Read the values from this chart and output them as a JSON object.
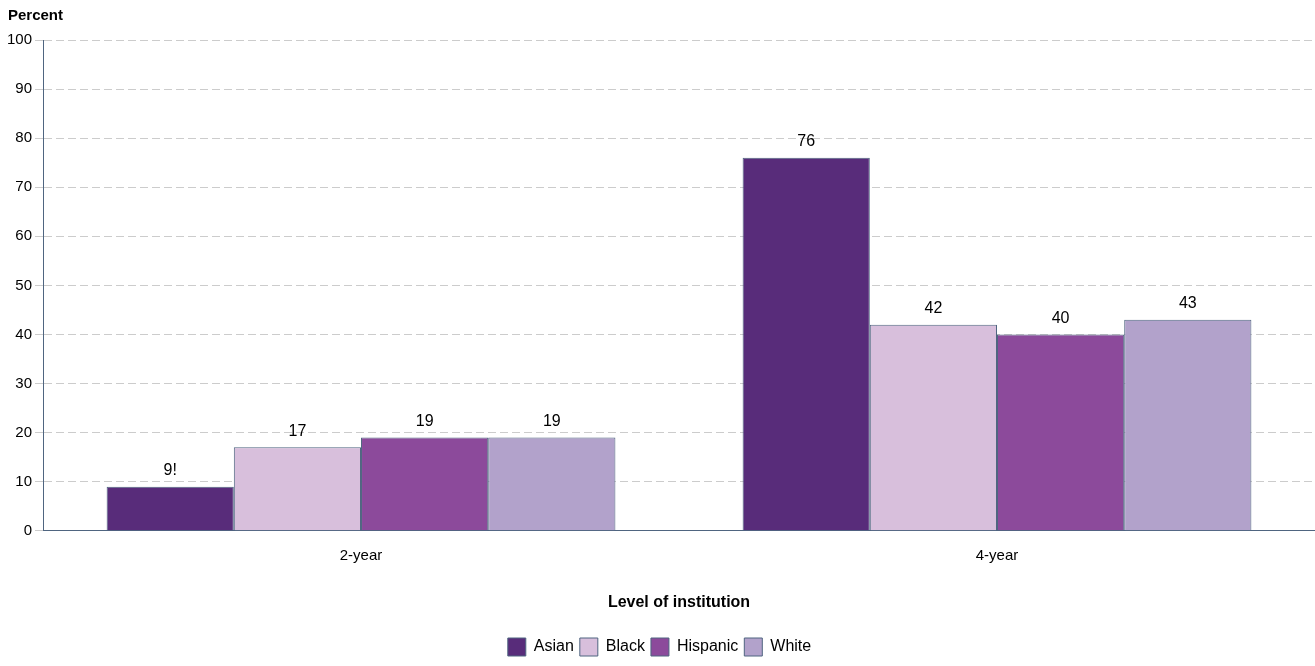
{
  "chart_data": {
    "type": "bar",
    "xlabel": "Level of institution",
    "ylabel": "Percent",
    "categories": [
      "2-year",
      "4-year"
    ],
    "series": [
      {
        "name": "Asian",
        "color": "#582c7a",
        "values": [
          9,
          76
        ],
        "value_labels": [
          "9!",
          "76"
        ]
      },
      {
        "name": "Black",
        "color": "#d8bfdc",
        "values": [
          17,
          42
        ],
        "value_labels": [
          "17",
          "42"
        ]
      },
      {
        "name": "Hispanic",
        "color": "#8c4a9b",
        "values": [
          19,
          40
        ],
        "value_labels": [
          "19",
          "40"
        ]
      },
      {
        "name": "White",
        "color": "#b2a2cb",
        "values": [
          19,
          43
        ],
        "value_labels": [
          "19",
          "43"
        ]
      }
    ],
    "ylim": [
      0,
      100
    ],
    "yticks": [
      0,
      10,
      20,
      30,
      40,
      50,
      60,
      70,
      80,
      90,
      100
    ],
    "grid": "y",
    "legend": "bottom"
  }
}
